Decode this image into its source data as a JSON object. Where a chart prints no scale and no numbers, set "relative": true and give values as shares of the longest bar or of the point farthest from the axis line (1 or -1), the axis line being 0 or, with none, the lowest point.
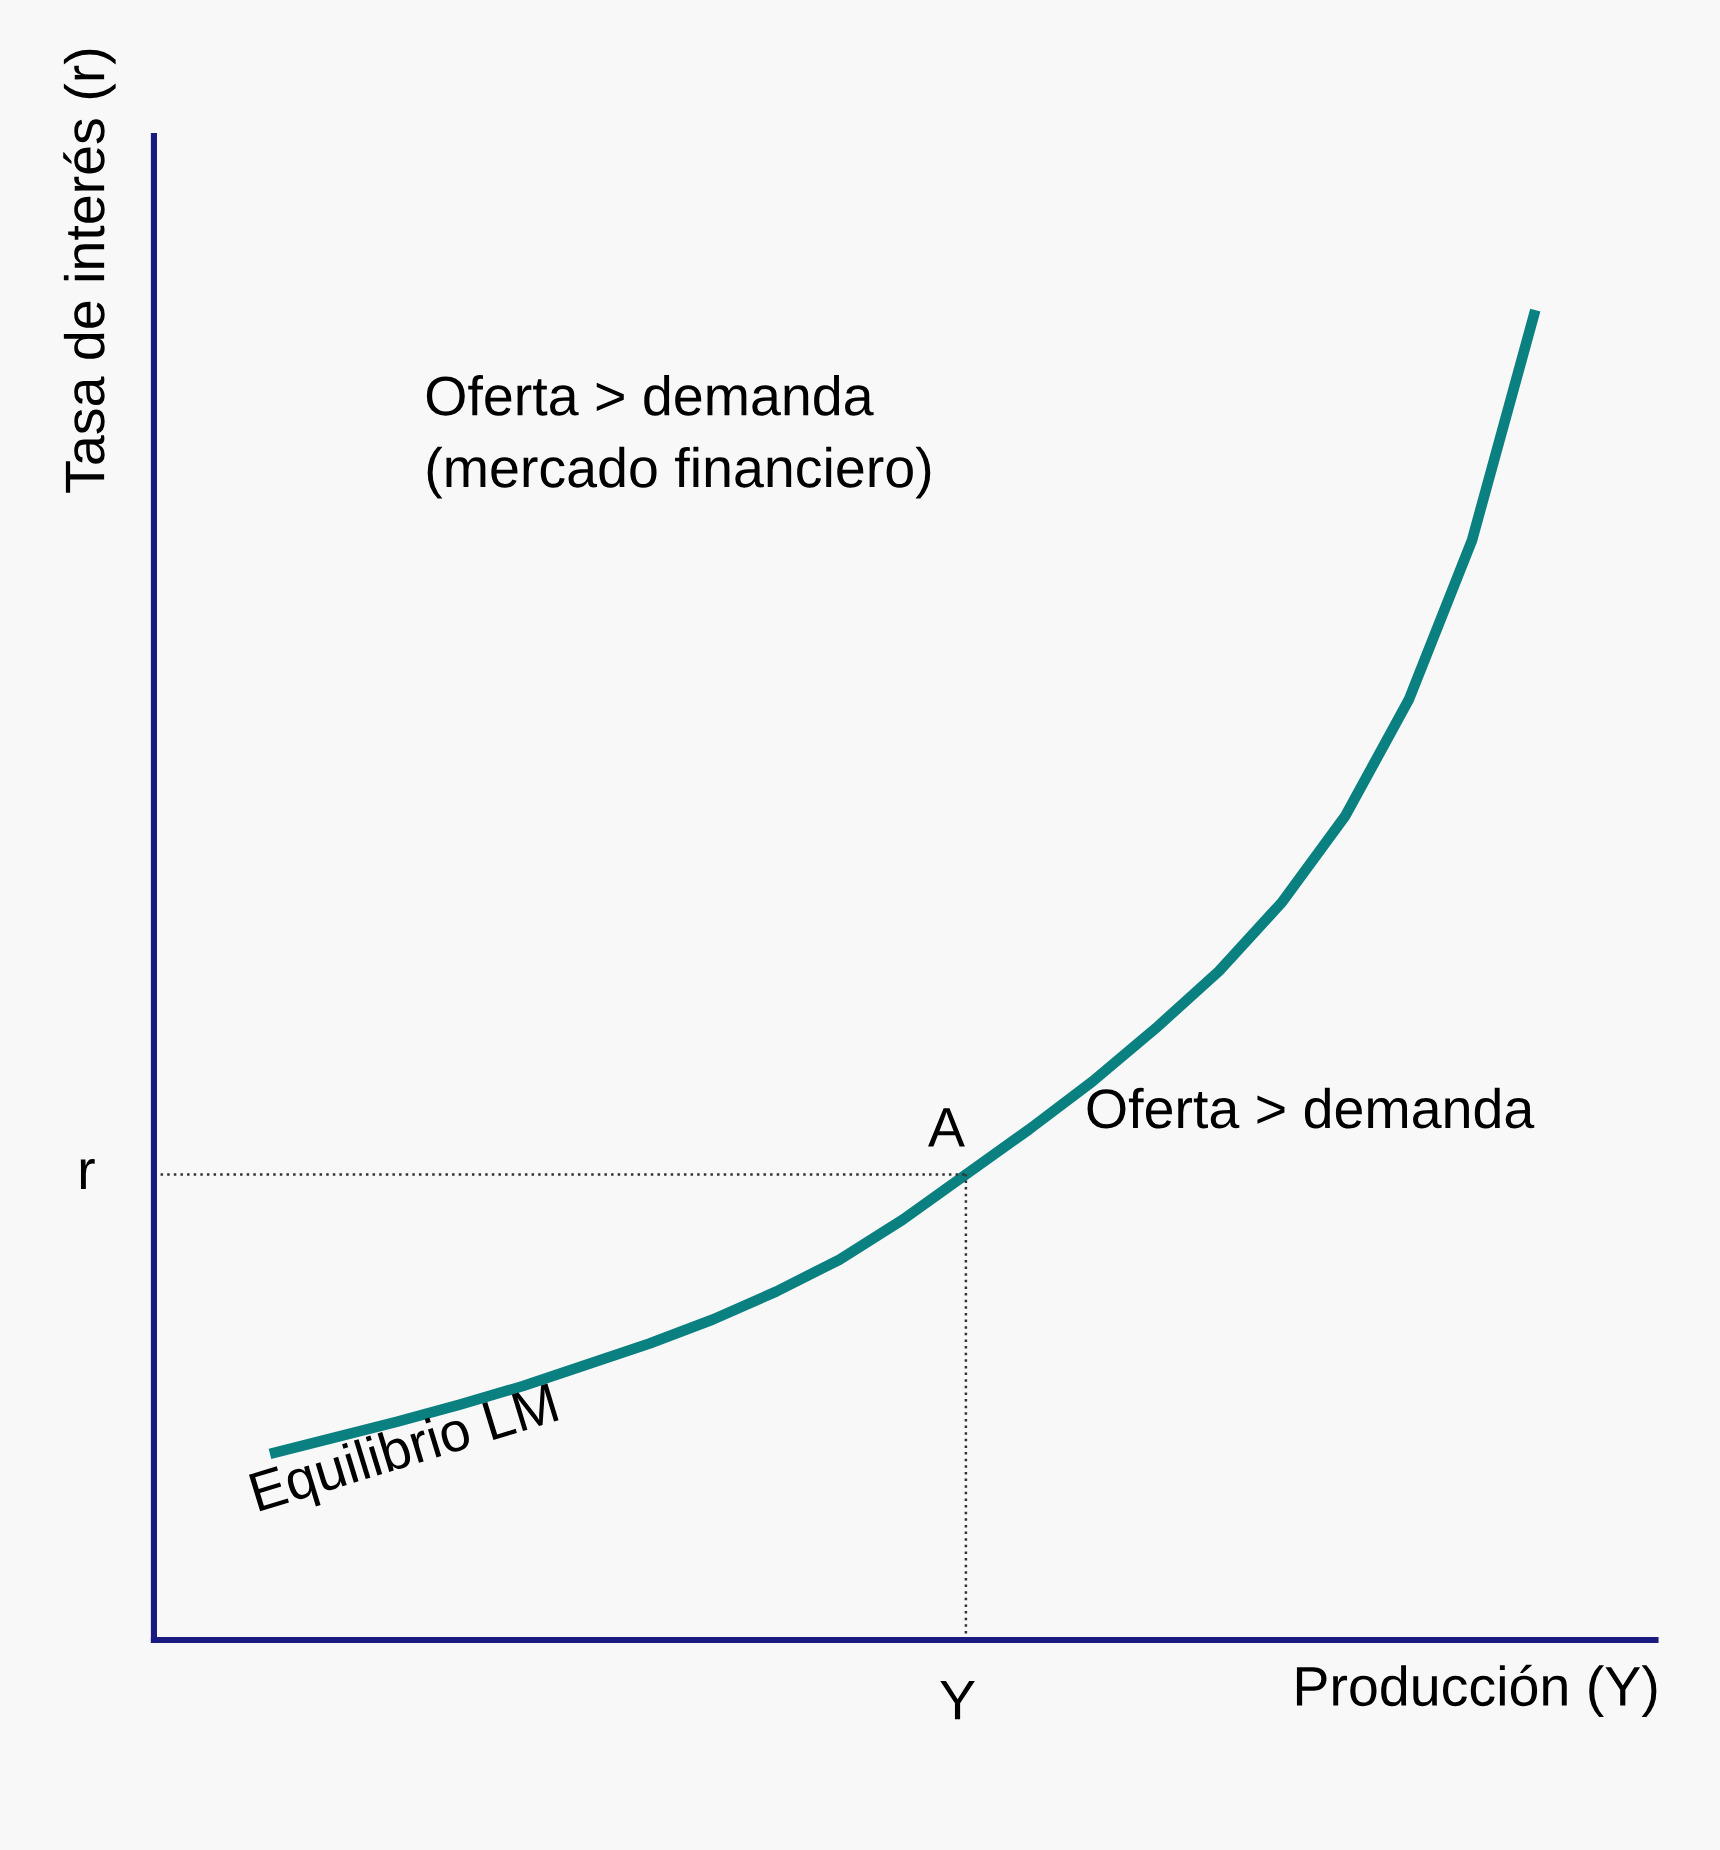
{
  "chart_data": {
    "type": "line",
    "relative": true,
    "xlabel": "Producción (Y)",
    "ylabel": "Tasa de interés (r)",
    "categories": [
      null,
      null,
      null,
      null,
      null,
      null,
      null,
      null,
      null,
      null,
      null,
      null,
      null,
      null,
      null,
      null,
      null,
      null,
      null,
      null,
      null
    ],
    "series": [
      {
        "color": "#0a8080",
        "values": [
          0.14,
          0.152,
          0.164,
          0.177,
          0.191,
          0.207,
          0.223,
          0.241,
          0.262,
          0.286,
          0.316,
          0.35,
          0.384,
          0.42,
          0.46,
          0.503,
          0.555,
          0.62,
          0.707,
          0.827,
          1.0
        ]
      }
    ],
    "ref_lines": [
      {
        "axis": "y",
        "value": 0.35,
        "label": "r",
        "color": "#333333",
        "line_style": "dotted"
      }
    ],
    "annotations": [
      "Oferta > demanda\n(mercado financiero)",
      "Oferta > demanda",
      "Equilibrio LM",
      "A",
      "Y"
    ],
    "marker": "none",
    "line_style": "solid"
  }
}
